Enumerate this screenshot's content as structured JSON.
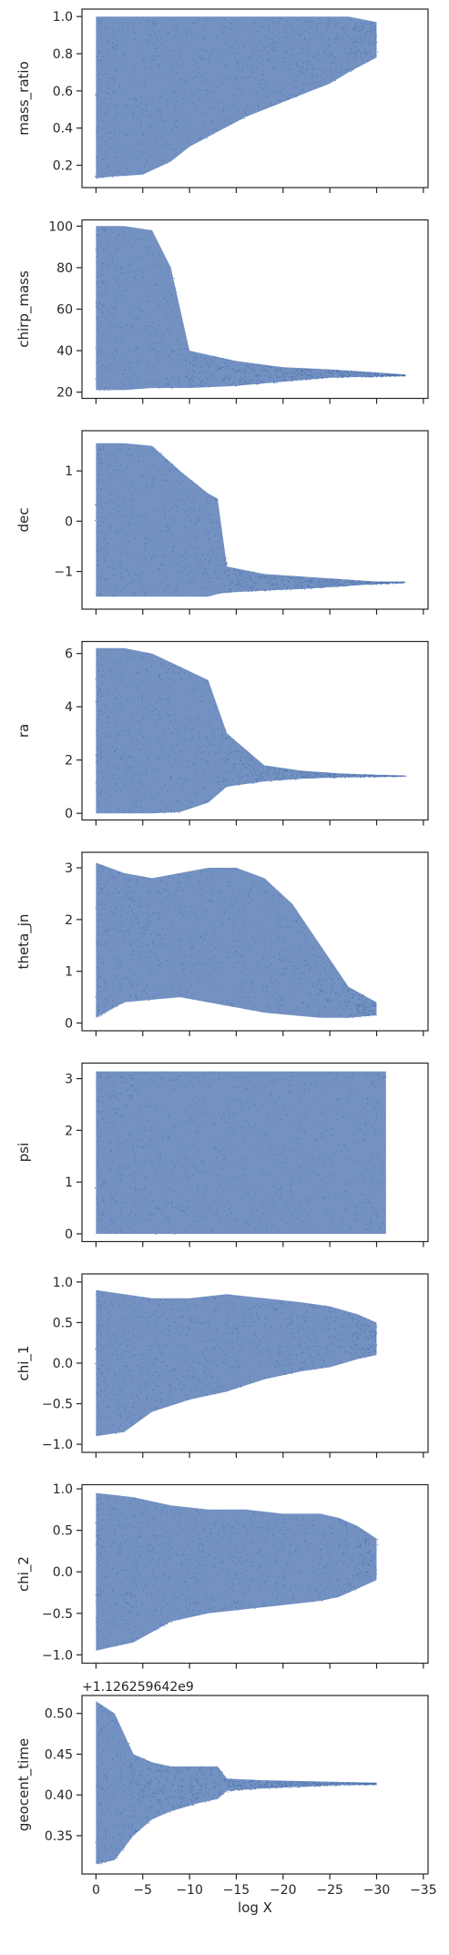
{
  "figure": {
    "xlabel": "log X",
    "xlim": [
      1.5,
      -35.5
    ],
    "x_ticks": [
      0,
      -5,
      -10,
      -15,
      -20,
      -25,
      -30,
      -35
    ],
    "x_tick_labels": [
      "0",
      "−5",
      "−10",
      "−15",
      "−20",
      "−25",
      "−30",
      "−35"
    ],
    "point_color": "#4c72b0",
    "frame_color": "#262626"
  },
  "chart_data": [
    {
      "type": "scatter",
      "ylabel": "mass_ratio",
      "ylim": [
        0.08,
        1.04
      ],
      "y_ticks": [
        0.2,
        0.4,
        0.6,
        0.8,
        1.0
      ],
      "y_tick_labels": [
        "0.2",
        "0.4",
        "0.6",
        "0.8",
        "1.0"
      ],
      "x": [
        0,
        -2,
        -5,
        -8,
        -10,
        -13,
        -16,
        -19,
        -22,
        -25,
        -27,
        -30
      ],
      "y_low": [
        0.13,
        0.14,
        0.15,
        0.22,
        0.3,
        0.38,
        0.46,
        0.52,
        0.58,
        0.64,
        0.7,
        0.78
      ],
      "y_high": [
        1.0,
        1.0,
        1.0,
        1.0,
        1.0,
        1.0,
        1.0,
        1.0,
        1.0,
        1.0,
        1.0,
        0.97
      ]
    },
    {
      "type": "scatter",
      "ylabel": "chirp_mass",
      "ylim": [
        17,
        103
      ],
      "y_ticks": [
        20,
        40,
        60,
        80,
        100
      ],
      "y_tick_labels": [
        "20",
        "40",
        "60",
        "80",
        "100"
      ],
      "x": [
        0,
        -3,
        -6,
        -8,
        -10,
        -15,
        -20,
        -25,
        -30,
        -33
      ],
      "y_low": [
        21,
        21,
        22,
        22,
        22,
        23,
        25,
        27,
        27.5,
        28
      ],
      "y_high": [
        100,
        100,
        98,
        80,
        40,
        35,
        32,
        31,
        29.5,
        28.5
      ]
    },
    {
      "type": "scatter",
      "ylabel": "dec",
      "ylim": [
        -1.75,
        1.8
      ],
      "y_ticks": [
        -1,
        0,
        1
      ],
      "y_tick_labels": [
        "−1",
        "0",
        "1"
      ],
      "x": [
        0,
        -3,
        -6,
        -9,
        -12,
        -13,
        -14,
        -18,
        -22,
        -26,
        -30,
        -33
      ],
      "y_low": [
        -1.5,
        -1.5,
        -1.5,
        -1.5,
        -1.5,
        -1.45,
        -1.42,
        -1.38,
        -1.35,
        -1.3,
        -1.25,
        -1.22
      ],
      "y_high": [
        1.55,
        1.55,
        1.5,
        1.0,
        0.55,
        0.45,
        -0.9,
        -1.05,
        -1.1,
        -1.15,
        -1.2,
        -1.2
      ]
    },
    {
      "type": "scatter",
      "ylabel": "ra",
      "ylim": [
        -0.25,
        6.45
      ],
      "y_ticks": [
        0,
        2,
        4,
        6
      ],
      "y_tick_labels": [
        "0",
        "2",
        "4",
        "6"
      ],
      "x": [
        0,
        -3,
        -6,
        -9,
        -12,
        -14,
        -18,
        -22,
        -26,
        -30,
        -33
      ],
      "y_low": [
        0.0,
        0.0,
        0.0,
        0.05,
        0.4,
        1.0,
        1.2,
        1.3,
        1.35,
        1.38,
        1.4
      ],
      "y_high": [
        6.2,
        6.2,
        6.0,
        5.5,
        5.0,
        3.0,
        1.8,
        1.6,
        1.5,
        1.45,
        1.42
      ]
    },
    {
      "type": "scatter",
      "ylabel": "theta_jn",
      "ylim": [
        -0.15,
        3.3
      ],
      "y_ticks": [
        0,
        1,
        2,
        3
      ],
      "y_tick_labels": [
        "0",
        "1",
        "2",
        "3"
      ],
      "x": [
        0,
        -3,
        -6,
        -9,
        -12,
        -15,
        -18,
        -21,
        -24,
        -27,
        -30
      ],
      "y_low": [
        0.1,
        0.4,
        0.45,
        0.5,
        0.4,
        0.3,
        0.2,
        0.15,
        0.1,
        0.1,
        0.15
      ],
      "y_high": [
        3.1,
        2.9,
        2.8,
        2.9,
        3.0,
        3.0,
        2.8,
        2.3,
        1.5,
        0.7,
        0.4
      ]
    },
    {
      "type": "scatter",
      "ylabel": "psi",
      "ylim": [
        -0.15,
        3.3
      ],
      "y_ticks": [
        0,
        1,
        2,
        3
      ],
      "y_tick_labels": [
        "0",
        "1",
        "2",
        "3"
      ],
      "x": [
        0,
        -5,
        -10,
        -15,
        -20,
        -25,
        -27,
        -29,
        -31
      ],
      "y_low": [
        0.0,
        0.0,
        0.0,
        0.0,
        0.0,
        0.0,
        0.0,
        0.0,
        0.0
      ],
      "y_high": [
        3.14,
        3.14,
        3.14,
        3.14,
        3.14,
        3.14,
        3.14,
        3.14,
        3.14
      ]
    },
    {
      "type": "scatter",
      "ylabel": "chi_1",
      "ylim": [
        -1.1,
        1.1
      ],
      "y_ticks": [
        -1.0,
        -0.5,
        0.0,
        0.5,
        1.0
      ],
      "y_tick_labels": [
        "−1.0",
        "−0.5",
        "0.0",
        "0.5",
        "1.0"
      ],
      "x": [
        0,
        -3,
        -6,
        -10,
        -14,
        -18,
        -22,
        -25,
        -28,
        -30
      ],
      "y_low": [
        -0.9,
        -0.85,
        -0.6,
        -0.45,
        -0.35,
        -0.2,
        -0.1,
        -0.05,
        0.05,
        0.1
      ],
      "y_high": [
        0.9,
        0.85,
        0.8,
        0.8,
        0.85,
        0.8,
        0.75,
        0.7,
        0.6,
        0.5
      ]
    },
    {
      "type": "scatter",
      "ylabel": "chi_2",
      "ylim": [
        -1.1,
        1.05
      ],
      "y_ticks": [
        -1.0,
        -0.5,
        0.0,
        0.5,
        1.0
      ],
      "y_tick_labels": [
        "−1.0",
        "−0.5",
        "0.0",
        "0.5",
        "1.0"
      ],
      "x": [
        0,
        -4,
        -8,
        -12,
        -16,
        -20,
        -24,
        -26,
        -28,
        -30
      ],
      "y_low": [
        -0.95,
        -0.85,
        -0.6,
        -0.5,
        -0.45,
        -0.4,
        -0.35,
        -0.3,
        -0.2,
        -0.1
      ],
      "y_high": [
        0.95,
        0.9,
        0.8,
        0.75,
        0.75,
        0.7,
        0.7,
        0.65,
        0.55,
        0.4
      ]
    },
    {
      "type": "scatter",
      "ylabel": "geocent_time",
      "offset_text": "+1.126259642e9",
      "ylim": [
        0.303,
        0.522
      ],
      "y_ticks": [
        0.35,
        0.4,
        0.45,
        0.5
      ],
      "y_tick_labels": [
        "0.35",
        "0.40",
        "0.45",
        "0.50"
      ],
      "x": [
        0,
        -2,
        -4,
        -6,
        -8,
        -11,
        -13,
        -14,
        -18,
        -22,
        -26,
        -30
      ],
      "y_low": [
        0.315,
        0.32,
        0.35,
        0.37,
        0.38,
        0.39,
        0.395,
        0.405,
        0.408,
        0.41,
        0.412,
        0.413
      ],
      "y_high": [
        0.515,
        0.5,
        0.45,
        0.44,
        0.435,
        0.435,
        0.435,
        0.42,
        0.418,
        0.417,
        0.416,
        0.415
      ]
    }
  ]
}
